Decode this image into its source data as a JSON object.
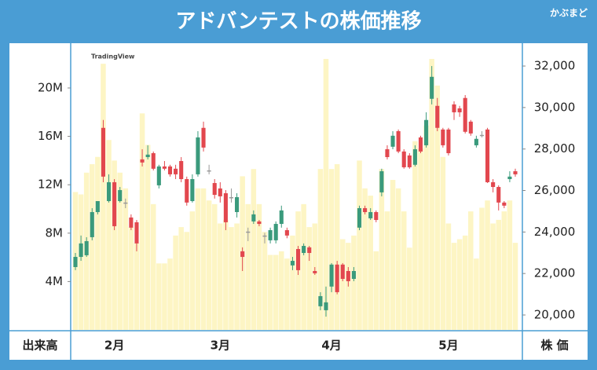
{
  "chart_data": {
    "type": "candlestick",
    "title": "アドバンテストの株価推移",
    "logo": "かぶまど",
    "watermark": "TradingView",
    "y2label": "出来高",
    "ylabel": "株 価",
    "categories": [
      null,
      null,
      null,
      null,
      null,
      null,
      null,
      "2月",
      null,
      null,
      null,
      null,
      null,
      null,
      null,
      null,
      null,
      null,
      null,
      null,
      null,
      null,
      null,
      null,
      null,
      null,
      "3月",
      null,
      null,
      null,
      null,
      null,
      null,
      null,
      null,
      null,
      null,
      null,
      null,
      null,
      null,
      null,
      null,
      null,
      null,
      null,
      "4月",
      null,
      null,
      null,
      null,
      null,
      null,
      null,
      null,
      null,
      null,
      null,
      null,
      null,
      null,
      null,
      null,
      null,
      null,
      null,
      null,
      "5月",
      null,
      null,
      null,
      null,
      null,
      null,
      null,
      null,
      null,
      null,
      null,
      null
    ],
    "open": [
      22310,
      22800,
      22880,
      23750,
      24960,
      29020,
      25490,
      26400,
      25490,
      25420,
      24700,
      24470,
      27500,
      27610,
      27800,
      26250,
      27160,
      27160,
      27050,
      27420,
      26550,
      25490,
      26780,
      29020,
      26970,
      26360,
      26100,
      25870,
      25680,
      24960,
      23070,
      24020,
      24510,
      24510,
      23830,
      23600,
      23600,
      24390,
      24090,
      22390,
      23180,
      22990,
      23260,
      22120,
      20420,
      20230,
      21370,
      22430,
      22430,
      22120,
      21740,
      24210,
      25150,
      24660,
      24960,
      25910,
      27990,
      28110,
      28860,
      27880,
      27690,
      27240,
      28560,
      28180,
      30420,
      30080,
      28940,
      28940,
      30150,
      29960,
      30460,
      29320,
      28180,
      28680,
      28940,
      26400,
      26170,
      25420,
      26550,
      26930
    ],
    "high": [
      22990,
      23830,
      23750,
      25150,
      25490,
      29400,
      26780,
      26550,
      26170,
      25610,
      24850,
      24580,
      27990,
      28180,
      27880,
      27240,
      27420,
      27240,
      27240,
      27610,
      26670,
      26780,
      28860,
      29320,
      27240,
      26550,
      26400,
      26020,
      26100,
      25870,
      23260,
      24210,
      25040,
      24580,
      23960,
      24210,
      24510,
      25270,
      24210,
      22800,
      23330,
      23450,
      23330,
      22310,
      21100,
      21370,
      22500,
      22610,
      22500,
      22310,
      22310,
      25270,
      25270,
      25150,
      25040,
      27050,
      28180,
      28860,
      28940,
      27990,
      27800,
      28180,
      28640,
      29770,
      32000,
      30460,
      29020,
      29020,
      30300,
      30080,
      30600,
      29400,
      28640,
      28860,
      29020,
      26550,
      26250,
      25490,
      26930,
      27050
    ],
    "low": [
      22160,
      22610,
      22800,
      23600,
      24850,
      26400,
      25420,
      24090,
      25420,
      25150,
      24090,
      23070,
      27160,
      27500,
      26970,
      26100,
      26970,
      26670,
      26550,
      26400,
      25270,
      25420,
      26670,
      27880,
      26780,
      25610,
      25420,
      24090,
      25420,
      24700,
      22120,
      23560,
      24390,
      24280,
      23450,
      23450,
      23450,
      24210,
      23700,
      22160,
      21930,
      22880,
      22610,
      21930,
      20230,
      19920,
      21100,
      21000,
      21630,
      21370,
      21630,
      24090,
      24850,
      24580,
      24470,
      25720,
      27500,
      27990,
      27800,
      27050,
      27050,
      27160,
      27800,
      28070,
      30150,
      28860,
      28070,
      27690,
      29400,
      29550,
      28750,
      28640,
      28070,
      28560,
      26360,
      25910,
      25040,
      25150,
      26400,
      26670
    ],
    "close": [
      22800,
      23450,
      23560,
      24960,
      25490,
      26670,
      26400,
      24280,
      26020,
      25420,
      24210,
      23450,
      27350,
      27730,
      27050,
      27160,
      27050,
      26780,
      26780,
      26550,
      25420,
      26550,
      28560,
      28070,
      26970,
      25790,
      25720,
      24470,
      25680,
      25680,
      22800,
      24020,
      24850,
      24390,
      23830,
      24090,
      24390,
      25040,
      23830,
      22610,
      22160,
      23330,
      22990,
      22010,
      20910,
      20610,
      22430,
      21100,
      21740,
      21630,
      22120,
      25150,
      24960,
      24960,
      24580,
      26930,
      27610,
      28640,
      27880,
      27120,
      27120,
      27990,
      27880,
      29400,
      31480,
      29020,
      28180,
      27800,
      29770,
      29770,
      28830,
      28750,
      28490,
      28680,
      26400,
      26170,
      25420,
      25270,
      26670,
      26780
    ],
    "volume": [
      11400000,
      11200000,
      13000000,
      13700000,
      14300000,
      22000000,
      15700000,
      14000000,
      13000000,
      11700000,
      8500000,
      7200000,
      17900000,
      15300000,
      10400000,
      5500000,
      5500000,
      5900000,
      7800000,
      8500000,
      8100000,
      9800000,
      11700000,
      11700000,
      10700000,
      10400000,
      8800000,
      9100000,
      8500000,
      8800000,
      12700000,
      10400000,
      13300000,
      10400000,
      8100000,
      6200000,
      6200000,
      6500000,
      5900000,
      7800000,
      9800000,
      10400000,
      8500000,
      8800000,
      13300000,
      22400000,
      13300000,
      13700000,
      7500000,
      7200000,
      7800000,
      14000000,
      11700000,
      11100000,
      6500000,
      13300000,
      9800000,
      12400000,
      11700000,
      9800000,
      6800000,
      15600000,
      15000000,
      16900000,
      22400000,
      20200000,
      14300000,
      8800000,
      7200000,
      7500000,
      7800000,
      9800000,
      5900000,
      10100000,
      10700000,
      8800000,
      9100000,
      9800000,
      10700000,
      7200000
    ],
    "up_color": "#3a9a7c",
    "down_color": "#e2474e",
    "flat_color": "#9a9a9a",
    "volume_color": "#fdf5c4",
    "ylim": [
      19280,
      33100
    ],
    "yticks": [
      {
        "value": 20000,
        "label": "20,000"
      },
      {
        "value": 22000,
        "label": "22,000"
      },
      {
        "value": 24000,
        "label": "24,000"
      },
      {
        "value": 26000,
        "label": "26,000"
      },
      {
        "value": 28000,
        "label": "28,000"
      },
      {
        "value": 30000,
        "label": "30,000"
      },
      {
        "value": 32000,
        "label": "32,000"
      }
    ],
    "y2lim": [
      0,
      23700000
    ],
    "y2ticks": [
      {
        "value": 4000000,
        "label": "4M"
      },
      {
        "value": 8000000,
        "label": "8M"
      },
      {
        "value": 12000000,
        "label": "12M"
      },
      {
        "value": 16000000,
        "label": "16M"
      },
      {
        "value": 20000000,
        "label": "20M"
      }
    ]
  }
}
